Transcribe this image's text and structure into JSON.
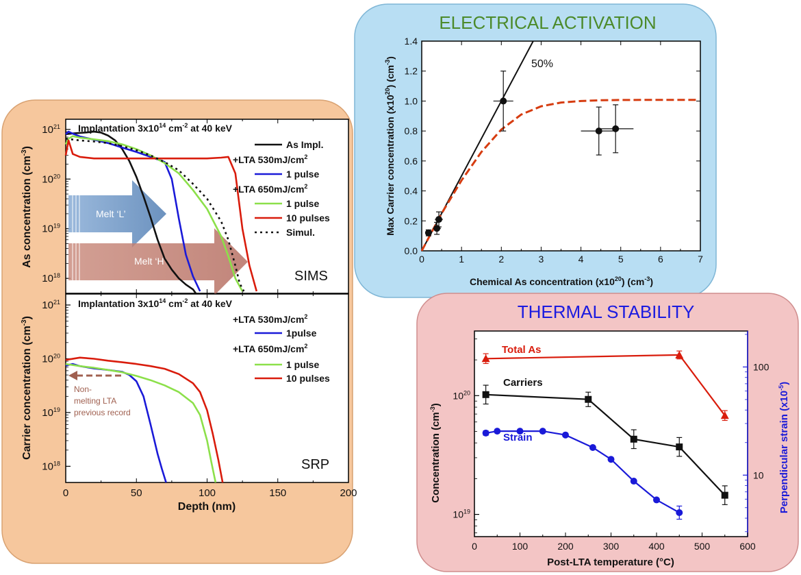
{
  "colors": {
    "black": "#111111",
    "blue": "#1a1ad8",
    "red": "#d91c0c",
    "green": "#8ce04a",
    "green_title": "#4c8a2a",
    "blue_title": "#1b1be0",
    "dash_red": "#d63c10",
    "brown_note": "#a06050",
    "panel_left": "#f6c79d",
    "panel_ea": "#b8def3",
    "panel_ts": "#f3c5c5"
  },
  "sims": {
    "heading": "Implantation 3x10",
    "heading_sup": "14",
    "heading_rest": " cm",
    "heading_sup2": "-2",
    "heading_end": " at 40 keV",
    "ylabel": "As concentration (cm",
    "ylabel_sup": "-3",
    "ylabel_end": ")",
    "corner_label": "SIMS",
    "ticks": [
      {
        "base": "10",
        "exp": "21"
      },
      {
        "base": "10",
        "exp": "20"
      },
      {
        "base": "10",
        "exp": "19"
      },
      {
        "base": "10",
        "exp": "18"
      }
    ],
    "legend": {
      "as_impl": "As Impl.",
      "lta530": "+LTA 530mJ/cm",
      "lta530_sup": "2",
      "pulse1a": "1 pulse",
      "lta650": "+LTA 650mJ/cm",
      "lta650_sup": "2",
      "pulse1b": "1 pulse",
      "pulse10": "10 pulses",
      "simul": "Simul."
    },
    "melt_l": "Melt ‘L’",
    "melt_h": "Melt ‘H’"
  },
  "srp": {
    "heading": "Implantation 3x10",
    "heading_sup": "14",
    "heading_rest": " cm",
    "heading_sup2": "-2",
    "heading_end": " at 40 keV",
    "ylabel": "Carrier concentration (cm",
    "ylabel_sup": "-3",
    "ylabel_end": ")",
    "corner_label": "SRP",
    "xlabel": "Depth (nm)",
    "x_ticks": [
      "0",
      "50",
      "100",
      "150",
      "200"
    ],
    "ticks": [
      {
        "base": "10",
        "exp": "21"
      },
      {
        "base": "10",
        "exp": "20"
      },
      {
        "base": "10",
        "exp": "19"
      },
      {
        "base": "10",
        "exp": "18"
      }
    ],
    "legend": {
      "lta530": "+LTA 530mJ/cm",
      "lta530_sup": "2",
      "pulse1a": "1pulse",
      "lta650": "+LTA 650mJ/cm",
      "lta650_sup": "2",
      "pulse1b": "1 pulse",
      "pulse10": "10 pulses"
    },
    "note_line1": "Non-",
    "note_line2": "melting LTA",
    "note_line3": "previous record"
  },
  "electrical": {
    "title": "ELECTRICAL ACTIVATION",
    "xlabel": "Chemical As concentration (x10",
    "xlabel_sup": "20",
    "xlabel_mid": ") (cm",
    "xlabel_sup2": "-3",
    "xlabel_end": ")",
    "ylabel": "Max Carrier concentration (x10",
    "ylabel_sup": "20",
    "ylabel_mid": ") (cm",
    "ylabel_sup2": "-3",
    "ylabel_end": ")",
    "annotation": "50%",
    "x_ticks": [
      "0",
      "1",
      "2",
      "3",
      "4",
      "5",
      "6",
      "7"
    ],
    "y_ticks": [
      "0.0",
      "0.2",
      "0.4",
      "0.6",
      "0.8",
      "1.0",
      "1.2",
      "1.4"
    ]
  },
  "thermal": {
    "title": "THERMAL STABILITY",
    "xlabel": "Post-LTA temperature (°C)",
    "ylabel_left": "Concentration (cm",
    "ylabel_left_sup": "-3",
    "ylabel_left_end": ")",
    "ylabel_right": "Perpendicular strain (x10",
    "ylabel_right_sup": "-5",
    "ylabel_right_end": ")",
    "label_total": "Total As",
    "label_carriers": "Carriers",
    "label_strain": "Strain",
    "x_ticks": [
      "0",
      "100",
      "200",
      "300",
      "400",
      "500",
      "600"
    ],
    "left_ticks": [
      {
        "base": "10",
        "exp": "20"
      },
      {
        "base": "10",
        "exp": "19"
      }
    ],
    "right_ticks": [
      "100",
      "10"
    ]
  },
  "chart_data": [
    {
      "type": "line",
      "title": "Implantation 3x10^14 cm-2 at 40 keV",
      "xlabel": "",
      "ylabel": "As concentration (cm-3)",
      "xlim": [
        0,
        200
      ],
      "ylim": [
        5e+17,
        1.6e+21
      ],
      "yscale": "log",
      "series": [
        {
          "name": "As Impl.",
          "x": [
            0,
            5,
            10,
            15,
            20,
            25,
            30,
            35,
            40,
            45,
            50,
            55,
            60,
            65,
            70,
            75,
            80,
            85,
            90,
            92
          ],
          "y": [
            8e+20,
            8.3e+20,
            8.5e+20,
            8.7e+20,
            9e+20,
            8.6e+20,
            7.5e+20,
            6e+20,
            4e+20,
            2.3e+20,
            1.1e+20,
            4.5e+19,
            1.7e+19,
            6e+18,
            2.5e+18,
            1.5e+18,
            1e+18,
            7.5e+17,
            6e+17,
            5e+17
          ]
        },
        {
          "name": "+LTA 530mJ/cm2 1 pulse",
          "x": [
            0,
            2,
            5,
            10,
            20,
            30,
            40,
            50,
            60,
            70,
            75,
            80,
            85,
            90,
            95
          ],
          "y": [
            8e+20,
            9e+20,
            8.2e+20,
            7.2e+20,
            6.2e+20,
            5.3e+20,
            4.3e+20,
            3.5e+20,
            2.8e+20,
            2.2e+20,
            1e+20,
            1.6e+19,
            3e+18,
            1.1e+18,
            5.5e+17
          ]
        },
        {
          "name": "+LTA 650mJ/cm2 1 pulse",
          "x": [
            0,
            2,
            5,
            10,
            20,
            30,
            40,
            50,
            60,
            70,
            80,
            90,
            100,
            110,
            115,
            120,
            125
          ],
          "y": [
            5e+20,
            6.5e+20,
            7.3e+20,
            6.8e+20,
            6.3e+20,
            5.8e+20,
            5e+20,
            4e+20,
            3e+20,
            2.1e+20,
            1.3e+20,
            6e+19,
            2.5e+19,
            7e+18,
            2.8e+18,
            1e+18,
            5.5e+17
          ]
        },
        {
          "name": "+LTA 650mJ/cm2 10 pulses",
          "x": [
            0,
            2,
            5,
            10,
            20,
            40,
            60,
            80,
            100,
            110,
            115,
            120,
            125,
            130,
            135
          ],
          "y": [
            3e+20,
            6e+20,
            3.2e+20,
            2.8e+20,
            2.6e+20,
            2.6e+20,
            2.6e+20,
            2.6e+20,
            2.6e+20,
            2.7e+20,
            2.8e+20,
            1.3e+20,
            1e+19,
            1.8e+18,
            5.5e+17
          ]
        },
        {
          "name": "Simul.",
          "x": [
            0,
            10,
            20,
            30,
            40,
            50,
            60,
            70,
            80,
            90,
            100,
            110,
            115,
            120,
            123,
            126
          ],
          "y": [
            6.5e+20,
            6e+20,
            5.7e+20,
            5.3e+20,
            4.6e+20,
            3.8e+20,
            3e+20,
            2.2e+20,
            1.5e+20,
            8e+19,
            4e+19,
            1.4e+19,
            6e+18,
            1.8e+18,
            8e+17,
            5.5e+17
          ]
        }
      ]
    },
    {
      "type": "line",
      "title": "Implantation 3x10^14 cm-2 at 40 keV",
      "xlabel": "Depth (nm)",
      "ylabel": "Carrier concentration (cm-3)",
      "xlim": [
        0,
        200
      ],
      "ylim": [
        5e+17,
        1.6e+21
      ],
      "yscale": "log",
      "series": [
        {
          "name": "+LTA 530mJ/cm2 1pulse",
          "x": [
            0,
            5,
            10,
            20,
            30,
            40,
            45,
            50,
            55,
            60,
            65,
            68,
            71
          ],
          "y": [
            7.5e+19,
            8e+19,
            7.3e+19,
            6.6e+19,
            6.2e+19,
            5.7e+19,
            5e+19,
            3.8e+19,
            2e+19,
            6e+18,
            1.7e+18,
            9e+17,
            5e+17
          ]
        },
        {
          "name": "+LTA 650mJ/cm2 1 pulse",
          "x": [
            0,
            10,
            20,
            30,
            40,
            50,
            60,
            70,
            80,
            90,
            95,
            100,
            103,
            106
          ],
          "y": [
            8e+19,
            7.3e+19,
            6.8e+19,
            6.2e+19,
            5.6e+19,
            4.8e+19,
            4e+19,
            3.2e+19,
            2.4e+19,
            1.5e+19,
            9e+18,
            3e+18,
            1.2e+18,
            5e+17
          ]
        },
        {
          "name": "+LTA 650mJ/cm2 10 pulses",
          "x": [
            0,
            10,
            20,
            30,
            40,
            50,
            60,
            70,
            80,
            90,
            95,
            100,
            104,
            108,
            111
          ],
          "y": [
            9.5e+19,
            1.05e+20,
            1e+20,
            9.2e+19,
            8.6e+19,
            8e+19,
            7.3e+19,
            6.5e+19,
            5.2e+19,
            3.5e+19,
            2.4e+19,
            1.1e+19,
            4e+18,
            1.3e+18,
            5e+17
          ]
        }
      ]
    },
    {
      "type": "scatter",
      "title": "ELECTRICAL ACTIVATION",
      "xlabel": "Chemical As concentration (x10^20) (cm-3)",
      "ylabel": "Max Carrier concentration (x10^20) (cm-3)",
      "xlim": [
        0,
        7
      ],
      "ylim": [
        0,
        1.4
      ],
      "annotations": [
        "50%"
      ],
      "points": [
        {
          "x": 0.17,
          "y": 0.12,
          "xerr": 0.05,
          "yerr": 0.02
        },
        {
          "x": 0.38,
          "y": 0.15,
          "xerr": 0.1,
          "yerr": 0.04
        },
        {
          "x": 0.43,
          "y": 0.21,
          "xerr": 0.1,
          "yerr": 0.05
        },
        {
          "x": 2.05,
          "y": 1.0,
          "xerr": 0.25,
          "yerr": 0.2
        },
        {
          "x": 4.45,
          "y": 0.8,
          "xerr": 0.45,
          "yerr": 0.16
        },
        {
          "x": 4.87,
          "y": 0.815,
          "xerr": 0.45,
          "yerr": 0.16
        }
      ],
      "lines": [
        {
          "style": "solid",
          "x": [
            0,
            2.8
          ],
          "y": [
            0,
            1.4
          ]
        },
        {
          "style": "dashed",
          "x": [
            0,
            0.5,
            1.0,
            1.5,
            2.0,
            2.5,
            3.0,
            3.5,
            4.0,
            4.5,
            5.0,
            6.0,
            6.9
          ],
          "y": [
            0,
            0.25,
            0.47,
            0.66,
            0.81,
            0.91,
            0.965,
            0.99,
            1.0,
            1.005,
            1.007,
            1.008,
            1.008
          ]
        }
      ]
    },
    {
      "type": "line",
      "title": "THERMAL STABILITY",
      "xlabel": "Post-LTA temperature (°C)",
      "ylabel": "Concentration (cm-3)",
      "y2label": "Perpendicular strain (x10-5)",
      "xlim": [
        0,
        600
      ],
      "ylim": [
        6.5e+18,
        3.5e+20
      ],
      "yscale": "log",
      "y2lim": [
        2.7,
        215
      ],
      "y2scale": "log",
      "series": [
        {
          "name": "Total As",
          "x": [
            25,
            450,
            550
          ],
          "y": [
            2.05e+20,
            2.2e+20,
            6.8e+19
          ],
          "axis": "left"
        },
        {
          "name": "Carriers",
          "x": [
            25,
            250,
            350,
            450,
            550
          ],
          "y": [
            1.02e+20,
            9.3e+19,
            4.3e+19,
            3.7e+19,
            1.45e+19
          ],
          "axis": "left"
        },
        {
          "name": "Strain",
          "x": [
            25,
            50,
            100,
            150,
            200,
            260,
            300,
            350,
            400,
            450
          ],
          "y": [
            24.5,
            25.5,
            25.5,
            25.5,
            23.5,
            18,
            14,
            8.8,
            5.9,
            4.5
          ],
          "axis": "right"
        }
      ]
    }
  ]
}
